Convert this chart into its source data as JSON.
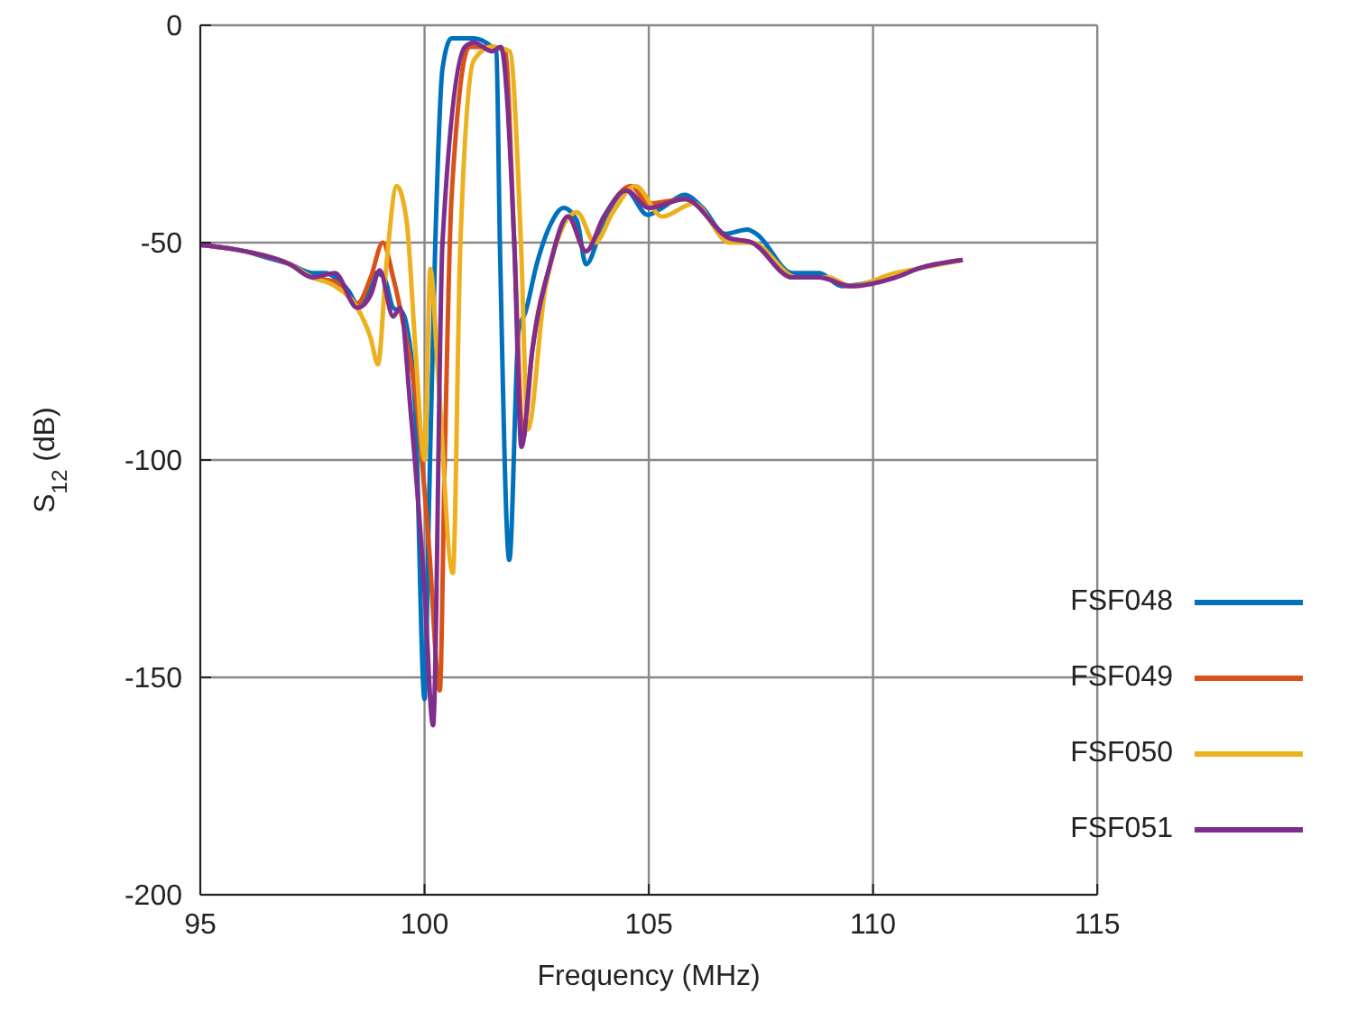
{
  "chart_data": {
    "type": "line",
    "xlabel": "Frequency (MHz)",
    "ylabel": "S$_{12}$ (dB)",
    "xlim": [
      95,
      115
    ],
    "xticks": [
      95,
      100,
      105,
      110,
      115
    ],
    "ylim": [
      -200,
      0
    ],
    "yticks": [
      -200,
      -150,
      -100,
      -50,
      0
    ],
    "grid": true,
    "legend": "bottom right",
    "marker": "none",
    "line_style": "solid",
    "series": [
      {
        "name": "FSF048",
        "color": "#0072bd",
        "x": [
          95,
          96,
          96.5,
          97,
          97.5,
          97.8,
          98,
          98.3,
          98.5,
          98.7,
          98.9,
          99.1,
          99.3,
          99.5,
          99.6,
          99.8,
          100,
          100.1,
          100.24,
          100.4,
          100.6,
          101.1,
          101.5,
          101.6,
          101.68,
          101.89,
          102.1,
          102.25,
          102.5,
          102.8,
          103.1,
          103.4,
          103.6,
          104,
          104.5,
          104.97,
          105.3,
          105.8,
          106.2,
          106.7,
          107.2,
          107.4,
          108.2,
          108.8,
          109.3,
          110,
          110.5
        ],
        "values": [
          -50.5,
          -52,
          -53.5,
          -55,
          -57,
          -57,
          -58,
          -61,
          -64,
          -62,
          -57,
          -58,
          -65,
          -66,
          -69,
          -90,
          -155,
          -110,
          -50,
          -10,
          -3,
          -3,
          -5,
          -6,
          -50,
          -123,
          -70,
          -66,
          -55,
          -46,
          -42,
          -45,
          -55,
          -45,
          -38,
          -43.6,
          -42,
          -39,
          -42,
          -48,
          -47,
          -48,
          -57,
          -57,
          -60,
          -59,
          -58
        ]
      },
      {
        "name": "FSF049",
        "color": "#d95319",
        "x": [
          95,
          96,
          97,
          97.5,
          98,
          98.5,
          98.8,
          99.07,
          99.3,
          99.55,
          99.8,
          100.1,
          100.34,
          100.45,
          100.6,
          101,
          101.5,
          101.8,
          102,
          102.2,
          102.4,
          102.8,
          103.2,
          103.6,
          104,
          104.6,
          105,
          105.8,
          106.8,
          107.3,
          108.2,
          108.8,
          109.5,
          110.5,
          111,
          112
        ],
        "values": [
          -50.5,
          -52,
          -55,
          -58,
          -59,
          -64,
          -58,
          -50,
          -58,
          -70,
          -85,
          -120,
          -153,
          -100,
          -40,
          -5,
          -5,
          -6,
          -50,
          -95,
          -75,
          -55,
          -44,
          -52,
          -44,
          -37,
          -41,
          -40,
          -49,
          -50,
          -58,
          -58,
          -60,
          -58,
          -56,
          -54
        ]
      },
      {
        "name": "FSF050",
        "color": "#edb120",
        "x": [
          95,
          96,
          97,
          97.5,
          98,
          98.5,
          98.8,
          98.96,
          99.15,
          99.38,
          99.6,
          99.8,
          100,
          100.13,
          100.3,
          100.63,
          100.8,
          101.1,
          101.5,
          101.9,
          102.15,
          102.3,
          102.7,
          103.4,
          103.8,
          104.2,
          104.7,
          105.3,
          106,
          106.8,
          107.3,
          108.3,
          109,
          109.5,
          110.5,
          111,
          112
        ],
        "values": [
          -50.5,
          -52,
          -55,
          -58,
          -60,
          -65,
          -72,
          -78,
          -55,
          -37,
          -45,
          -75,
          -100,
          -56,
          -80,
          -126,
          -50,
          -8,
          -5,
          -6,
          -50,
          -93,
          -60,
          -43,
          -50,
          -43,
          -37,
          -44,
          -41,
          -50,
          -50,
          -58,
          -58,
          -60,
          -57,
          -56,
          -54
        ]
      },
      {
        "name": "FSF051",
        "color": "#7e2f8e",
        "x": [
          95,
          96,
          97,
          97.5,
          98,
          98.5,
          98.8,
          99,
          99.3,
          99.45,
          99.7,
          100,
          100.19,
          100.4,
          100.9,
          101.1,
          101.5,
          101.7,
          102,
          102.16,
          102.4,
          102.8,
          103.2,
          103.6,
          104,
          104.5,
          105,
          105.8,
          106.8,
          107.3,
          108.2,
          108.8,
          109.5,
          110.5,
          111,
          112
        ],
        "values": [
          -50.5,
          -52,
          -55,
          -58,
          -57,
          -65,
          -62,
          -56.4,
          -67,
          -65,
          -90,
          -130,
          -161,
          -50,
          -5,
          -4,
          -6,
          -5,
          -50,
          -97,
          -75,
          -55,
          -44,
          -52,
          -44,
          -38,
          -42,
          -40,
          -49,
          -50,
          -58,
          -58,
          -60,
          -58,
          -56,
          -54
        ]
      }
    ]
  }
}
